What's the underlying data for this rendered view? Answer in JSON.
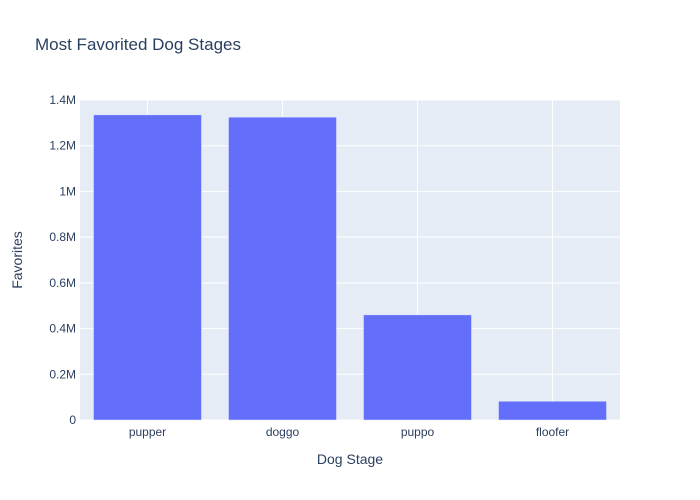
{
  "chart_data": {
    "type": "bar",
    "title": "Most Favorited Dog Stages",
    "xlabel": "Dog Stage",
    "ylabel": "Favorites",
    "categories": [
      "pupper",
      "doggo",
      "puppo",
      "floofer"
    ],
    "values": [
      1335000,
      1325000,
      460000,
      82000
    ],
    "ylim": [
      0,
      1400000
    ],
    "yticks": [
      {
        "value": 0,
        "label": "0"
      },
      {
        "value": 200000,
        "label": "0.2M"
      },
      {
        "value": 400000,
        "label": "0.4M"
      },
      {
        "value": 600000,
        "label": "0.6M"
      },
      {
        "value": 800000,
        "label": "0.8M"
      },
      {
        "value": 1000000,
        "label": "1M"
      },
      {
        "value": 1200000,
        "label": "1.2M"
      },
      {
        "value": 1400000,
        "label": "1.4M"
      }
    ],
    "grid": true,
    "legend": "none",
    "colors": {
      "bar": "#636efa",
      "bar_stroke": "#e5ecf6",
      "plot_background": "#e5ecf6",
      "grid": "#ffffff",
      "text": "#2a3f5f"
    }
  }
}
